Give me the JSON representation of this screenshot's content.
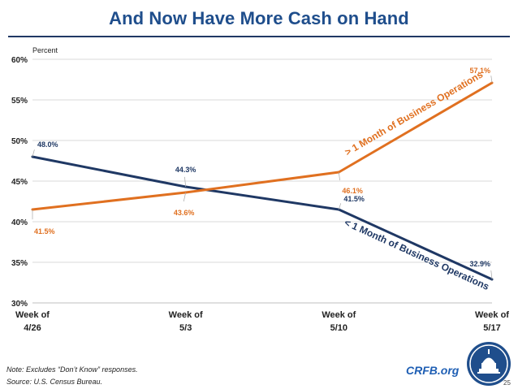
{
  "slide": {
    "title": "And Now Have More Cash on Hand",
    "note": "Note: Excludes “Don’t Know” responses.",
    "source": "Source: U.S. Census Bureau.",
    "brand": "CRFB.org",
    "page_number": "25"
  },
  "colors": {
    "title": "#1f4e8c",
    "less_than_series": "#1f3864",
    "more_than_series": "#e07020",
    "brand": "#1f5fb4"
  },
  "chart_data": {
    "type": "line",
    "title": "And Now Have More Cash on Hand",
    "ylabel": "Percent",
    "xlabel": "",
    "ylim": [
      30,
      60
    ],
    "yticks": [
      30,
      35,
      40,
      45,
      50,
      55,
      60
    ],
    "ytick_labels": [
      "30%",
      "35%",
      "40%",
      "45%",
      "50%",
      "55%",
      "60%"
    ],
    "categories": [
      [
        "Week of",
        "4/26"
      ],
      [
        "Week of",
        "5/3"
      ],
      [
        "Week of",
        "5/10"
      ],
      [
        "Week of",
        "5/17"
      ]
    ],
    "grid": true,
    "series": [
      {
        "name": "< 1 Month of Business Operations",
        "color": "#1f3864",
        "values": [
          48.0,
          44.3,
          41.5,
          32.9
        ],
        "labels": [
          "48.0%",
          "44.3%",
          "41.5%",
          "32.9%"
        ]
      },
      {
        "name": "> 1 Month of Business Operations",
        "color": "#e07020",
        "values": [
          41.5,
          43.6,
          46.1,
          57.1
        ],
        "labels": [
          "41.5%",
          "43.6%",
          "46.1%",
          "57.1%"
        ]
      }
    ]
  }
}
